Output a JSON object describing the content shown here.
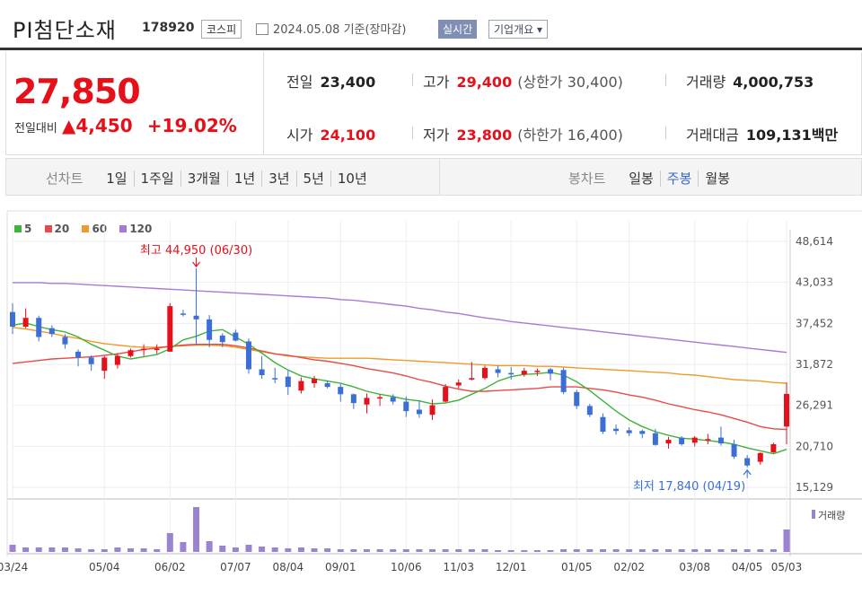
{
  "header": {
    "name": "PI첨단소재",
    "code": "178920",
    "market": "코스피",
    "date_text": "2024.05.08 기준(장마감)",
    "realtime_label": "실시간",
    "corp_label": "기업개요 ▾"
  },
  "quote": {
    "price": "27,850",
    "diff_label": "전일대비",
    "diff_value": "▲4,450",
    "diff_pct": "+19.02%",
    "prev_label": "전일",
    "prev": "23,400",
    "high_label": "고가",
    "high": "29,400",
    "upper_limit": "(상한가 30,400)",
    "volume_label": "거래량",
    "volume": "4,000,753",
    "open_label": "시가",
    "open": "24,100",
    "low_label": "저가",
    "low": "23,800",
    "lower_limit": "(하한가 16,400)",
    "amount_label": "거래대금",
    "amount": "109,131",
    "amount_unit": "백만"
  },
  "tabs": {
    "line_label": "선차트",
    "line_items": [
      "1일",
      "1주일",
      "3개월",
      "1년",
      "3년",
      "5년",
      "10년"
    ],
    "candle_label": "봉차트",
    "candle_items": [
      "일봉",
      "주봉",
      "월봉"
    ],
    "candle_selected": 1
  },
  "colors": {
    "up": "#e5101a",
    "down": "#3b6fd6",
    "ma5": "#3fb33a",
    "ma20": "#e84a4a",
    "ma60": "#f09a2a",
    "ma120": "#a77ad6",
    "volume": "#9b84cf"
  },
  "chart_data": {
    "type": "candlestick",
    "legend": [
      {
        "name": "5",
        "color": "#3fb33a"
      },
      {
        "name": "20",
        "color": "#e84a4a"
      },
      {
        "name": "60",
        "color": "#f09a2a"
      },
      {
        "name": "120",
        "color": "#a77ad6"
      }
    ],
    "y_ticks": [
      "48,614",
      "43,033",
      "37,452",
      "31,872",
      "26,291",
      "20,710",
      "15,129"
    ],
    "ylim": [
      15129,
      48614
    ],
    "x_ticks": [
      "03/24",
      "05/04",
      "06/02",
      "07/07",
      "08/04",
      "09/01",
      "10/06",
      "11/03",
      "12/01",
      "01/05",
      "02/02",
      "03/08",
      "04/05",
      "05/03"
    ],
    "volume_label": "거래량",
    "max_annotation": "최고 44,950 (06/30)",
    "min_annotation": "최저 17,840 (04/19)",
    "candles": [
      [
        39000,
        40200,
        36000,
        37000
      ],
      [
        37000,
        39500,
        36800,
        38200
      ],
      [
        38200,
        38500,
        35000,
        35600
      ],
      [
        36800,
        37200,
        35600,
        36000
      ],
      [
        35600,
        36000,
        34000,
        34600
      ],
      [
        33600,
        33900,
        31600,
        32800
      ],
      [
        32800,
        33100,
        31000,
        31900
      ],
      [
        31000,
        33000,
        29900,
        32800
      ],
      [
        31800,
        33400,
        31300,
        33000
      ],
      [
        33000,
        34000,
        32800,
        33800
      ],
      [
        33800,
        34600,
        33000,
        34000
      ],
      [
        34000,
        34600,
        33300,
        34000
      ],
      [
        33600,
        40200,
        33600,
        39800
      ],
      [
        38800,
        39300,
        38400,
        38700
      ],
      [
        38500,
        44950,
        34500,
        38000
      ],
      [
        38000,
        38600,
        34200,
        35200
      ],
      [
        35800,
        36100,
        34200,
        34900
      ],
      [
        36200,
        36600,
        35000,
        35100
      ],
      [
        35000,
        35400,
        30600,
        31200
      ],
      [
        31200,
        33000,
        29900,
        30400
      ],
      [
        30000,
        31400,
        29300,
        29900
      ],
      [
        30200,
        31000,
        27700,
        28800
      ],
      [
        28300,
        30100,
        27900,
        29600
      ],
      [
        29300,
        30300,
        28700,
        29900
      ],
      [
        29300,
        29700,
        28600,
        28800
      ],
      [
        28800,
        29200,
        26800,
        27800
      ],
      [
        27800,
        27900,
        25800,
        26600
      ],
      [
        26400,
        27900,
        25200,
        27300
      ],
      [
        27300,
        27800,
        26200,
        27400
      ],
      [
        27400,
        27800,
        26400,
        26800
      ],
      [
        26800,
        27500,
        24700,
        25500
      ],
      [
        25700,
        27000,
        24600,
        25100
      ],
      [
        25000,
        27100,
        24300,
        26300
      ],
      [
        26800,
        29200,
        26700,
        28800
      ],
      [
        29000,
        29800,
        28600,
        29400
      ],
      [
        29800,
        32200,
        29700,
        30000
      ],
      [
        30000,
        31700,
        29800,
        31400
      ],
      [
        31200,
        31700,
        30100,
        30700
      ],
      [
        30700,
        31500,
        29800,
        30500
      ],
      [
        30500,
        31400,
        30200,
        31000
      ],
      [
        31000,
        31300,
        30300,
        31000
      ],
      [
        31200,
        31400,
        29700,
        30600
      ],
      [
        31100,
        31400,
        27800,
        28100
      ],
      [
        28100,
        28400,
        25800,
        26200
      ],
      [
        26200,
        26500,
        24700,
        25000
      ],
      [
        24700,
        25200,
        22400,
        22700
      ],
      [
        23100,
        23700,
        22300,
        22800
      ],
      [
        22900,
        23300,
        22100,
        22500
      ],
      [
        22800,
        23000,
        21800,
        22400
      ],
      [
        22500,
        23100,
        20800,
        20900
      ],
      [
        21100,
        22000,
        20400,
        21600
      ],
      [
        21900,
        22100,
        20800,
        21000
      ],
      [
        21200,
        22100,
        20700,
        21900
      ],
      [
        21700,
        22400,
        21000,
        21700
      ],
      [
        21900,
        23400,
        20800,
        21100
      ],
      [
        21000,
        21600,
        19000,
        19300
      ],
      [
        19100,
        19500,
        17840,
        18100
      ],
      [
        18600,
        19900,
        18200,
        19800
      ],
      [
        19900,
        21200,
        19800,
        21000
      ],
      [
        23400,
        29400,
        21000,
        27850
      ]
    ],
    "ma5": [
      37200,
      37500,
      37000,
      36600,
      36300,
      35600,
      34600,
      33800,
      33000,
      32600,
      32900,
      33200,
      34000,
      35200,
      35700,
      36400,
      36600,
      35600,
      34600,
      33400,
      32100,
      31100,
      30300,
      29900,
      29600,
      29300,
      28800,
      28200,
      27800,
      27500,
      27100,
      26900,
      26500,
      26600,
      27000,
      27800,
      28600,
      29600,
      30200,
      30500,
      30600,
      30800,
      30400,
      29500,
      28300,
      26900,
      25500,
      24300,
      23400,
      22700,
      22200,
      21800,
      21700,
      21500,
      21300,
      21000,
      20500,
      20100,
      19700,
      20300
    ],
    "ma20": [
      32000,
      32200,
      32400,
      32600,
      32700,
      32800,
      32900,
      33100,
      33300,
      33600,
      33900,
      34100,
      34300,
      34500,
      34600,
      34600,
      34600,
      34400,
      34100,
      33700,
      33300,
      33100,
      32800,
      32500,
      32300,
      32000,
      31700,
      31300,
      31000,
      30700,
      30300,
      29800,
      29400,
      28900,
      28500,
      28200,
      28200,
      28300,
      28400,
      28500,
      28600,
      28800,
      28800,
      28800,
      28600,
      28400,
      28100,
      27700,
      27400,
      27000,
      26500,
      26100,
      25700,
      25400,
      25000,
      24500,
      24000,
      23400,
      23100,
      23000
    ],
    "ma60": [
      36900,
      36700,
      36400,
      36100,
      35700,
      35400,
      35000,
      34700,
      34500,
      34300,
      34200,
      34200,
      34300,
      34400,
      34500,
      34500,
      34400,
      34200,
      33900,
      33600,
      33300,
      33000,
      32900,
      32800,
      32700,
      32700,
      32700,
      32700,
      32600,
      32500,
      32400,
      32300,
      32200,
      32100,
      32000,
      31900,
      31800,
      31700,
      31700,
      31700,
      31600,
      31600,
      31500,
      31400,
      31300,
      31200,
      31100,
      31000,
      30900,
      30800,
      30700,
      30500,
      30400,
      30200,
      30000,
      29800,
      29700,
      29600,
      29400,
      29300
    ],
    "ma120": [
      43000,
      43000,
      43000,
      42900,
      42900,
      42800,
      42700,
      42600,
      42500,
      42400,
      42300,
      42200,
      42100,
      42000,
      41900,
      41800,
      41700,
      41600,
      41500,
      41400,
      41300,
      41200,
      41100,
      41000,
      40900,
      40700,
      40600,
      40400,
      40200,
      40000,
      39800,
      39500,
      39300,
      39000,
      38800,
      38500,
      38200,
      38000,
      37700,
      37500,
      37300,
      37100,
      36900,
      36700,
      36500,
      36300,
      36100,
      35900,
      35700,
      35500,
      35300,
      35100,
      34900,
      34700,
      34500,
      34300,
      34100,
      33900,
      33700,
      33500
    ],
    "volume": [
      8,
      5,
      5,
      5,
      5,
      4,
      3,
      3,
      5,
      4,
      4,
      3,
      21,
      11,
      50,
      12,
      7,
      5,
      8,
      6,
      5,
      4,
      5,
      4,
      4,
      3,
      3,
      3,
      3,
      3,
      3,
      3,
      3,
      3,
      3,
      3,
      3,
      2,
      2,
      2,
      2,
      2,
      3,
      3,
      3,
      3,
      3,
      3,
      3,
      3,
      3,
      3,
      3,
      3,
      3,
      3,
      3,
      3,
      3,
      25
    ]
  }
}
